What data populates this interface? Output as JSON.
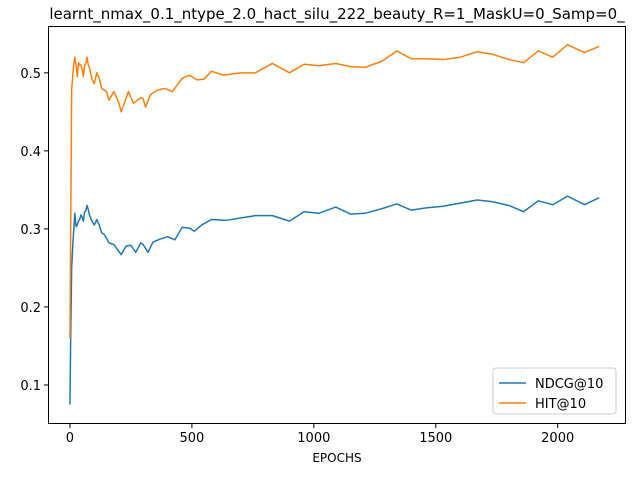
{
  "chart_data": {
    "type": "line",
    "title": "learnt_nmax_0.1_ntype_2.0_hact_silu_222_beauty_R=1_MaskU=0_Samp=0_",
    "xlabel": "EPOCHS",
    "ylabel": "",
    "xlim": [
      -90,
      2280
    ],
    "ylim": [
      0.05,
      0.56
    ],
    "xticks": [
      0,
      500,
      1000,
      1500,
      2000
    ],
    "yticks": [
      0.1,
      0.2,
      0.3,
      0.4,
      0.5
    ],
    "legend_position": "lower-right",
    "grid": false,
    "series": [
      {
        "name": "NDCG@10",
        "color": "#1f77b4",
        "points": [
          [
            0,
            0.075
          ],
          [
            3,
            0.16
          ],
          [
            7,
            0.25
          ],
          [
            12,
            0.282
          ],
          [
            16,
            0.3
          ],
          [
            20,
            0.32
          ],
          [
            25,
            0.303
          ],
          [
            30,
            0.305
          ],
          [
            35,
            0.31
          ],
          [
            40,
            0.312
          ],
          [
            45,
            0.318
          ],
          [
            50,
            0.315
          ],
          [
            55,
            0.31
          ],
          [
            60,
            0.322
          ],
          [
            65,
            0.323
          ],
          [
            70,
            0.33
          ],
          [
            75,
            0.325
          ],
          [
            80,
            0.318
          ],
          [
            90,
            0.31
          ],
          [
            100,
            0.305
          ],
          [
            110,
            0.312
          ],
          [
            120,
            0.305
          ],
          [
            130,
            0.295
          ],
          [
            140,
            0.293
          ],
          [
            150,
            0.288
          ],
          [
            160,
            0.282
          ],
          [
            180,
            0.28
          ],
          [
            210,
            0.267
          ],
          [
            230,
            0.278
          ],
          [
            250,
            0.279
          ],
          [
            270,
            0.27
          ],
          [
            290,
            0.282
          ],
          [
            300,
            0.28
          ],
          [
            320,
            0.27
          ],
          [
            340,
            0.283
          ],
          [
            370,
            0.287
          ],
          [
            400,
            0.29
          ],
          [
            430,
            0.286
          ],
          [
            460,
            0.302
          ],
          [
            490,
            0.301
          ],
          [
            510,
            0.297
          ],
          [
            540,
            0.305
          ],
          [
            580,
            0.312
          ],
          [
            640,
            0.311
          ],
          [
            700,
            0.314
          ],
          [
            760,
            0.317
          ],
          [
            830,
            0.317
          ],
          [
            900,
            0.31
          ],
          [
            960,
            0.322
          ],
          [
            1020,
            0.32
          ],
          [
            1090,
            0.328
          ],
          [
            1150,
            0.319
          ],
          [
            1210,
            0.32
          ],
          [
            1280,
            0.326
          ],
          [
            1340,
            0.332
          ],
          [
            1400,
            0.324
          ],
          [
            1460,
            0.327
          ],
          [
            1530,
            0.329
          ],
          [
            1600,
            0.333
          ],
          [
            1670,
            0.337
          ],
          [
            1730,
            0.335
          ],
          [
            1800,
            0.33
          ],
          [
            1860,
            0.322
          ],
          [
            1920,
            0.336
          ],
          [
            1980,
            0.331
          ],
          [
            2040,
            0.342
          ],
          [
            2110,
            0.331
          ],
          [
            2170,
            0.34
          ]
        ]
      },
      {
        "name": "HIT@10",
        "color": "#ff7f0e",
        "points": [
          [
            0,
            0.16
          ],
          [
            3,
            0.3
          ],
          [
            7,
            0.48
          ],
          [
            10,
            0.49
          ],
          [
            15,
            0.51
          ],
          [
            20,
            0.52
          ],
          [
            25,
            0.51
          ],
          [
            30,
            0.495
          ],
          [
            35,
            0.513
          ],
          [
            40,
            0.51
          ],
          [
            45,
            0.51
          ],
          [
            50,
            0.505
          ],
          [
            55,
            0.495
          ],
          [
            60,
            0.51
          ],
          [
            65,
            0.512
          ],
          [
            70,
            0.52
          ],
          [
            75,
            0.51
          ],
          [
            80,
            0.507
          ],
          [
            90,
            0.492
          ],
          [
            100,
            0.486
          ],
          [
            110,
            0.5
          ],
          [
            120,
            0.493
          ],
          [
            130,
            0.48
          ],
          [
            140,
            0.478
          ],
          [
            150,
            0.476
          ],
          [
            160,
            0.465
          ],
          [
            180,
            0.476
          ],
          [
            200,
            0.462
          ],
          [
            210,
            0.45
          ],
          [
            240,
            0.476
          ],
          [
            260,
            0.461
          ],
          [
            290,
            0.468
          ],
          [
            300,
            0.467
          ],
          [
            310,
            0.456
          ],
          [
            330,
            0.472
          ],
          [
            360,
            0.478
          ],
          [
            390,
            0.48
          ],
          [
            420,
            0.476
          ],
          [
            460,
            0.493
          ],
          [
            490,
            0.497
          ],
          [
            520,
            0.491
          ],
          [
            550,
            0.492
          ],
          [
            580,
            0.502
          ],
          [
            630,
            0.497
          ],
          [
            700,
            0.5
          ],
          [
            760,
            0.5
          ],
          [
            830,
            0.512
          ],
          [
            900,
            0.5
          ],
          [
            960,
            0.511
          ],
          [
            1020,
            0.509
          ],
          [
            1090,
            0.512
          ],
          [
            1150,
            0.508
          ],
          [
            1210,
            0.507
          ],
          [
            1280,
            0.515
          ],
          [
            1340,
            0.528
          ],
          [
            1400,
            0.518
          ],
          [
            1460,
            0.518
          ],
          [
            1530,
            0.517
          ],
          [
            1600,
            0.52
          ],
          [
            1670,
            0.527
          ],
          [
            1730,
            0.524
          ],
          [
            1800,
            0.517
          ],
          [
            1860,
            0.513
          ],
          [
            1920,
            0.528
          ],
          [
            1980,
            0.52
          ],
          [
            2040,
            0.536
          ],
          [
            2110,
            0.526
          ],
          [
            2170,
            0.534
          ]
        ]
      }
    ]
  }
}
